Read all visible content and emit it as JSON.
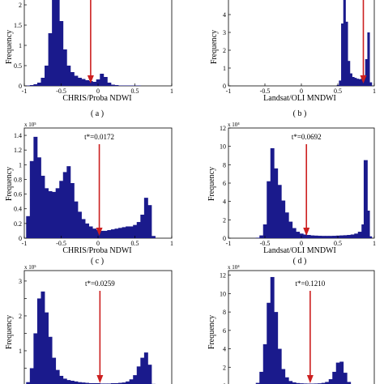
{
  "figure": {
    "panels": [
      {
        "id": "a",
        "caption": "( a )",
        "xlabel": "CHRIS/Proba NDWI",
        "ylabel": "Frequency",
        "exponent": "",
        "threshold_label": ""
      },
      {
        "id": "b",
        "caption": "( b )",
        "xlabel": "Landsat/OLI MNDWI",
        "ylabel": "Frequency",
        "exponent": "",
        "threshold_label": ""
      },
      {
        "id": "c",
        "caption": "( c )",
        "xlabel": "CHRIS/Proba NDWI",
        "ylabel": "Frequency",
        "exponent": "x 10⁵",
        "threshold_label": "t*=0.0172"
      },
      {
        "id": "d",
        "caption": "( d )",
        "xlabel": "Landsat/OLI MNDWI",
        "ylabel": "Frequency",
        "exponent": "x 10⁴",
        "threshold_label": "t*=0.0692"
      },
      {
        "id": "e",
        "caption": "",
        "xlabel": "",
        "ylabel": "Frequency",
        "exponent": "x 10⁵",
        "threshold_label": "t*=0.0259"
      },
      {
        "id": "f",
        "caption": "",
        "xlabel": "",
        "ylabel": "Frequency",
        "exponent": "x 10⁴",
        "threshold_label": "t*=0.1210"
      }
    ]
  },
  "chart_data": [
    {
      "id": "a",
      "type": "bar",
      "xlabel": "CHRIS/Proba NDWI",
      "ylabel": "Frequency",
      "xlim": [
        -1,
        1
      ],
      "ylim": [
        0,
        2.2
      ],
      "xticks": [
        -1,
        -0.5,
        0,
        0.5,
        1
      ],
      "xtick_labels": [
        "-1",
        "-0.5",
        "0",
        "0.5",
        "1"
      ],
      "yticks": [
        0,
        0.5,
        1,
        1.5,
        2
      ],
      "ytick_labels": [
        "0",
        "0.5",
        "1",
        "1.5",
        "2"
      ],
      "threshold": -0.1,
      "x": [
        -0.95,
        -0.9,
        -0.85,
        -0.8,
        -0.75,
        -0.7,
        -0.65,
        -0.6,
        -0.55,
        -0.5,
        -0.45,
        -0.4,
        -0.35,
        -0.3,
        -0.25,
        -0.2,
        -0.15,
        -0.1,
        -0.05,
        0.0,
        0.05,
        0.1,
        0.15,
        0.2,
        0.25,
        0.3,
        0.35,
        0.4,
        0.45,
        0.5,
        0.55,
        0.6,
        0.65,
        0.7
      ],
      "y": [
        0.01,
        0.02,
        0.04,
        0.08,
        0.2,
        0.5,
        1.3,
        2.2,
        2.4,
        1.6,
        0.9,
        0.5,
        0.34,
        0.25,
        0.2,
        0.17,
        0.14,
        0.12,
        0.1,
        0.16,
        0.3,
        0.22,
        0.08,
        0.03,
        0.02,
        0.01,
        0.01,
        0.01,
        0.01,
        0.01,
        0.01,
        0.0,
        0.0,
        0.0
      ]
    },
    {
      "id": "b",
      "type": "bar",
      "xlabel": "Landsat/OLI MNDWI",
      "ylabel": "Frequency",
      "xlim": [
        -1,
        1
      ],
      "ylim": [
        0,
        5
      ],
      "xticks": [
        -1,
        -0.5,
        0,
        0.5,
        1
      ],
      "xtick_labels": [
        "-1",
        "-0.5",
        "0",
        "0.5",
        "1"
      ],
      "yticks": [
        0,
        1,
        2,
        3,
        4
      ],
      "ytick_labels": [
        "0",
        "1",
        "2",
        "3",
        "4"
      ],
      "threshold": 0.85,
      "x": [
        0.5,
        0.53,
        0.56,
        0.59,
        0.62,
        0.65,
        0.68,
        0.71,
        0.74,
        0.77,
        0.8,
        0.83,
        0.86,
        0.89,
        0.92,
        0.95
      ],
      "y": [
        0.05,
        0.3,
        3.5,
        5.2,
        3.6,
        1.4,
        0.7,
        0.5,
        0.45,
        0.4,
        0.38,
        0.4,
        0.6,
        1.5,
        3.0,
        0.2
      ]
    },
    {
      "id": "c",
      "type": "bar",
      "xlabel": "CHRIS/Proba NDWI",
      "ylabel": "Frequency",
      "xlim": [
        -1,
        1
      ],
      "ylim": [
        0,
        1.5
      ],
      "xticks": [
        -1,
        -0.5,
        0,
        0.5,
        1
      ],
      "xtick_labels": [
        "-1",
        "-0.5",
        "0",
        "0.5",
        "1"
      ],
      "yticks": [
        0,
        0.2,
        0.4,
        0.6,
        0.8,
        1,
        1.2,
        1.4
      ],
      "ytick_labels": [
        "0",
        "0.2",
        "0.4",
        "0.6",
        "0.8",
        "1",
        "1.2",
        "1.4"
      ],
      "threshold": 0.0172,
      "x": [
        -0.95,
        -0.9,
        -0.85,
        -0.8,
        -0.75,
        -0.7,
        -0.65,
        -0.6,
        -0.55,
        -0.5,
        -0.45,
        -0.4,
        -0.35,
        -0.3,
        -0.25,
        -0.2,
        -0.15,
        -0.1,
        -0.05,
        0.0,
        0.05,
        0.1,
        0.15,
        0.2,
        0.25,
        0.3,
        0.35,
        0.4,
        0.45,
        0.5,
        0.55,
        0.6,
        0.65,
        0.7,
        0.75
      ],
      "y": [
        0.3,
        1.05,
        1.38,
        1.1,
        0.85,
        0.68,
        0.64,
        0.63,
        0.68,
        0.78,
        0.9,
        0.98,
        0.75,
        0.5,
        0.36,
        0.26,
        0.2,
        0.16,
        0.13,
        0.11,
        0.1,
        0.1,
        0.11,
        0.12,
        0.13,
        0.14,
        0.15,
        0.16,
        0.16,
        0.18,
        0.22,
        0.32,
        0.55,
        0.45,
        0.03
      ]
    },
    {
      "id": "d",
      "type": "bar",
      "xlabel": "Landsat/OLI MNDWI",
      "ylabel": "Frequency",
      "xlim": [
        -1,
        1
      ],
      "ylim": [
        0,
        12
      ],
      "xticks": [
        -1,
        -0.5,
        0,
        0.5,
        1
      ],
      "xtick_labels": [
        "-1",
        "-0.5",
        "0",
        "0.5",
        "1"
      ],
      "yticks": [
        0,
        2,
        4,
        6,
        8,
        10,
        12
      ],
      "ytick_labels": [
        "0",
        "2",
        "4",
        "6",
        "8",
        "10",
        "12"
      ],
      "threshold": 0.0692,
      "x": [
        -0.6,
        -0.55,
        -0.5,
        -0.45,
        -0.4,
        -0.35,
        -0.3,
        -0.25,
        -0.2,
        -0.15,
        -0.1,
        -0.05,
        0.0,
        0.05,
        0.1,
        0.15,
        0.2,
        0.25,
        0.3,
        0.35,
        0.4,
        0.45,
        0.5,
        0.55,
        0.6,
        0.65,
        0.7,
        0.75,
        0.8,
        0.85,
        0.88,
        0.91,
        0.94
      ],
      "y": [
        0.05,
        0.3,
        1.5,
        6.2,
        9.8,
        7.6,
        5.8,
        4.1,
        2.8,
        1.8,
        1.1,
        0.7,
        0.5,
        0.4,
        0.35,
        0.3,
        0.28,
        0.26,
        0.25,
        0.25,
        0.25,
        0.26,
        0.28,
        0.3,
        0.32,
        0.35,
        0.4,
        0.5,
        0.7,
        1.5,
        8.5,
        3.0,
        0.2
      ]
    },
    {
      "id": "e",
      "type": "bar",
      "xlabel": "",
      "ylabel": "Frequency",
      "xlim": [
        -1,
        1
      ],
      "ylim": [
        0,
        3.3
      ],
      "xticks": [],
      "xtick_labels": [],
      "yticks": [
        0.5,
        1,
        1.5,
        2,
        2.5,
        3
      ],
      "ytick_labels": [
        "",
        "1",
        "",
        "2",
        "",
        "3"
      ],
      "threshold": 0.0259,
      "x": [
        -0.95,
        -0.9,
        -0.85,
        -0.8,
        -0.75,
        -0.7,
        -0.65,
        -0.6,
        -0.55,
        -0.5,
        -0.45,
        -0.4,
        -0.35,
        -0.3,
        -0.25,
        -0.2,
        -0.15,
        -0.1,
        -0.05,
        0.0,
        0.05,
        0.1,
        0.15,
        0.2,
        0.25,
        0.3,
        0.35,
        0.4,
        0.45,
        0.5,
        0.55,
        0.6,
        0.65,
        0.7,
        0.75
      ],
      "y": [
        0.1,
        0.5,
        1.5,
        2.5,
        2.7,
        2.1,
        1.4,
        0.8,
        0.45,
        0.28,
        0.2,
        0.16,
        0.14,
        0.12,
        0.1,
        0.09,
        0.08,
        0.07,
        0.07,
        0.07,
        0.06,
        0.06,
        0.06,
        0.07,
        0.07,
        0.08,
        0.09,
        0.12,
        0.18,
        0.3,
        0.55,
        0.8,
        0.95,
        0.6,
        0.05
      ]
    },
    {
      "id": "f",
      "type": "bar",
      "xlabel": "",
      "ylabel": "Frequency",
      "xlim": [
        -1,
        1
      ],
      "ylim": [
        0,
        12.5
      ],
      "xticks": [],
      "xtick_labels": [],
      "yticks": [
        0,
        2,
        4,
        6,
        8,
        10,
        12
      ],
      "ytick_labels": [
        "0",
        "2",
        "4",
        "6",
        "8",
        "10",
        "12"
      ],
      "threshold": 0.121,
      "x": [
        -0.65,
        -0.6,
        -0.55,
        -0.5,
        -0.45,
        -0.4,
        -0.35,
        -0.3,
        -0.25,
        -0.2,
        -0.15,
        -0.1,
        -0.05,
        0.0,
        0.05,
        0.1,
        0.15,
        0.2,
        0.25,
        0.3,
        0.35,
        0.4,
        0.45,
        0.5,
        0.55,
        0.6,
        0.65,
        0.7,
        0.75,
        0.8,
        0.85
      ],
      "y": [
        0.05,
        0.3,
        1.5,
        4.5,
        9.0,
        11.8,
        8.0,
        4.0,
        1.8,
        0.9,
        0.5,
        0.35,
        0.28,
        0.25,
        0.23,
        0.22,
        0.22,
        0.23,
        0.25,
        0.3,
        0.4,
        0.7,
        1.5,
        2.5,
        2.6,
        1.4,
        0.4,
        0.1,
        0.05,
        0.02,
        0.01
      ]
    }
  ],
  "colors": {
    "bar": "#1a1a8c",
    "arrow": "#cc1f1f",
    "axis": "#000000"
  }
}
